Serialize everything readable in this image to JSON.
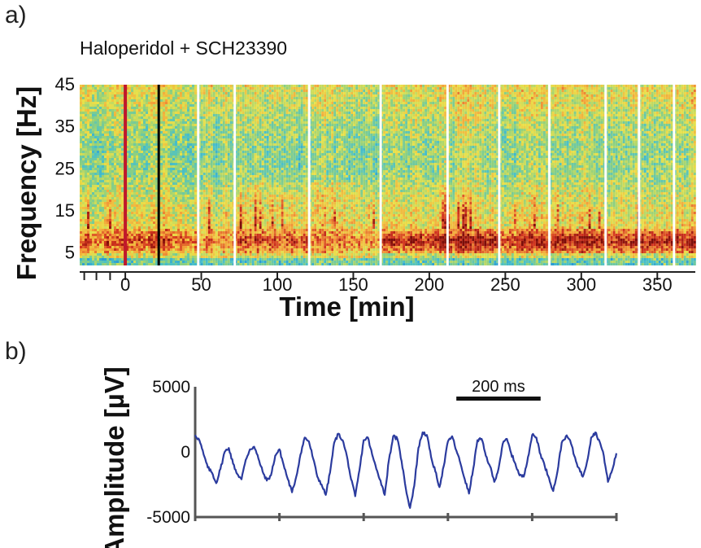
{
  "panel_a_label": "a)",
  "panel_b_label": "b)",
  "colors": {
    "drug_marker": "#c0182b",
    "second_marker": "#000000",
    "trace": "#2b3b9e",
    "axis": "#555555",
    "colormap": [
      "#1f8fd6",
      "#49c0c9",
      "#8fd07e",
      "#e9e14a",
      "#f4a23a",
      "#d2341f",
      "#7d0d08"
    ]
  },
  "chart_data": [
    {
      "type": "heatmap",
      "title": "",
      "annotation": "Haloperidol + SCH23390",
      "xlabel": "Time [min]",
      "ylabel": "Frequency [Hz]",
      "x_ticks": [
        0,
        50,
        100,
        150,
        200,
        250,
        300,
        350
      ],
      "y_ticks": [
        5,
        15,
        25,
        35,
        45
      ],
      "xlim": [
        -30,
        375
      ],
      "ylim": [
        2,
        45
      ],
      "extra_minor_ticks_before_zero": [
        -27,
        -19,
        -10
      ],
      "drug_marker_time": 0,
      "second_marker_time": 22,
      "recording_gaps": [
        48,
        72,
        121,
        168,
        212,
        246,
        279,
        316,
        338,
        361
      ],
      "segments": [
        {
          "start": -30,
          "end": 48,
          "theta": 0.55,
          "high": 0.45,
          "broadband": 0.2
        },
        {
          "start": 48,
          "end": 72,
          "theta": 0.35,
          "high": 0.35,
          "broadband": 0.1
        },
        {
          "start": 72,
          "end": 121,
          "theta": 0.6,
          "high": 0.4,
          "broadband": 0.45
        },
        {
          "start": 121,
          "end": 168,
          "theta": 0.35,
          "high": 0.3,
          "broadband": 0.3
        },
        {
          "start": 168,
          "end": 212,
          "theta": 0.85,
          "high": 0.65,
          "broadband": 0.65
        },
        {
          "start": 212,
          "end": 246,
          "theta": 0.85,
          "high": 0.6,
          "broadband": 0.35
        },
        {
          "start": 246,
          "end": 279,
          "theta": 0.75,
          "high": 0.55,
          "broadband": 0.35
        },
        {
          "start": 279,
          "end": 316,
          "theta": 0.85,
          "high": 0.6,
          "broadband": 0.45
        },
        {
          "start": 316,
          "end": 338,
          "theta": 0.75,
          "high": 0.5,
          "broadband": 0.3
        },
        {
          "start": 338,
          "end": 361,
          "theta": 0.8,
          "high": 0.55,
          "broadband": 0.4
        },
        {
          "start": 361,
          "end": 375,
          "theta": 0.75,
          "high": 0.55,
          "broadband": 0.35
        }
      ]
    },
    {
      "type": "line",
      "title": "",
      "xlabel": "",
      "ylabel": "Amplitude [µV]",
      "y_ticks": [
        5000,
        0,
        -5000
      ],
      "y_tick_labels": [
        "5000",
        "0",
        "-5000"
      ],
      "ylim": [
        -5000,
        5000
      ],
      "xlim_ms": [
        0,
        1000
      ],
      "x_tick_ms": [
        0,
        200,
        400,
        600,
        800,
        1000
      ],
      "scale_bar": {
        "label": "200 ms",
        "length_ms": 200,
        "start_ms": 620
      },
      "series": [
        {
          "x_ms": [
            0,
            10,
            20,
            30,
            40,
            50,
            60,
            70,
            80,
            90,
            100,
            110,
            120,
            130,
            140,
            150,
            160,
            170,
            180,
            190,
            200,
            210,
            220,
            230,
            240,
            250,
            260,
            270,
            280,
            290,
            300,
            310,
            320,
            330,
            340,
            350,
            360,
            370,
            380,
            390,
            400,
            410,
            420,
            430,
            440,
            450,
            460,
            470,
            480,
            490,
            500,
            510,
            520,
            530,
            540,
            550,
            560,
            570,
            580,
            590,
            600,
            610,
            620,
            630,
            640,
            650,
            660,
            670,
            680,
            690,
            700,
            710,
            720,
            730,
            740,
            750,
            760,
            770,
            780,
            790,
            800,
            810,
            820,
            830,
            840,
            850,
            860,
            870,
            880,
            890,
            900,
            910,
            920,
            930,
            940,
            950,
            960,
            970,
            980,
            990,
            1000
          ],
          "y": [
            1300,
            900,
            -200,
            -1200,
            -1600,
            -2400,
            -1300,
            0,
            300,
            -900,
            -1700,
            -2100,
            -600,
            200,
            400,
            -500,
            -1500,
            -2200,
            -1800,
            -300,
            200,
            -1000,
            -2100,
            -3100,
            -1900,
            -200,
            1100,
            800,
            -500,
            -1900,
            -2500,
            -3300,
            -1600,
            700,
            1400,
            900,
            -300,
            -2100,
            -3400,
            -1400,
            900,
            1100,
            -200,
            -1300,
            -2200,
            -3300,
            -600,
            1200,
            1000,
            -700,
            -2800,
            -4300,
            -2600,
            300,
            1500,
            1300,
            -400,
            -1500,
            -2700,
            -1100,
            800,
            1200,
            100,
            -900,
            -2100,
            -3200,
            -1300,
            900,
            1000,
            -300,
            -1100,
            -2300,
            -1300,
            600,
            1000,
            -100,
            -900,
            -1800,
            -1900,
            -400,
            1300,
            1100,
            -200,
            -1100,
            -2000,
            -3000,
            -1500,
            700,
            1200,
            900,
            -300,
            -1200,
            -1900,
            -800,
            1100,
            1500,
            800,
            -300,
            -2300,
            -1400,
            -100
          ]
        }
      ]
    }
  ]
}
